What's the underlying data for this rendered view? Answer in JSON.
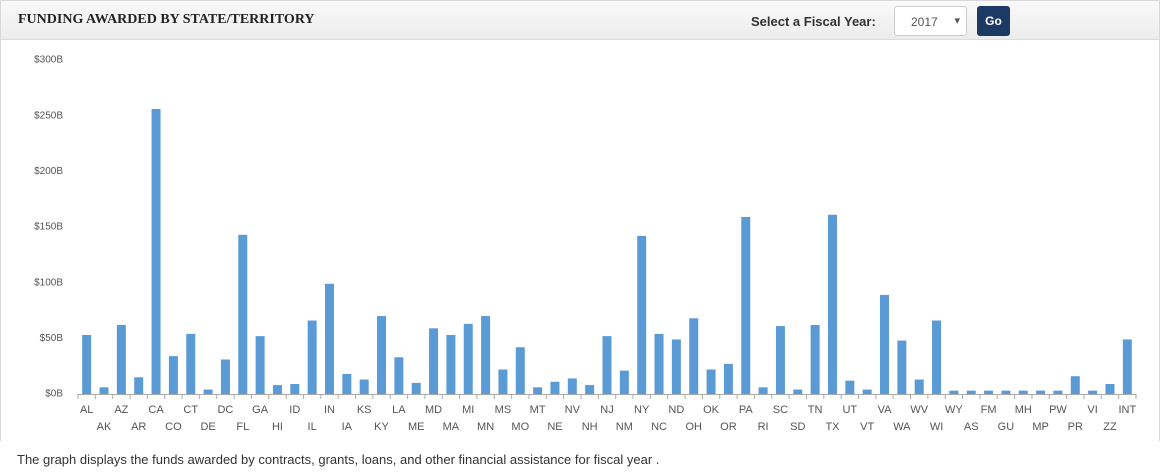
{
  "header": {
    "title": "FUNDING AWARDED BY STATE/TERRITORY",
    "select_label": "Select a Fiscal Year:",
    "selected_year": "2017",
    "button": "Go"
  },
  "chart_data": {
    "type": "bar",
    "color": "#5b9bd5",
    "categories": [
      "AL",
      "AK",
      "AZ",
      "AR",
      "CA",
      "CO",
      "CT",
      "DE",
      "DC",
      "FL",
      "GA",
      "HI",
      "ID",
      "IL",
      "IN",
      "IA",
      "KS",
      "KY",
      "LA",
      "ME",
      "MD",
      "MA",
      "MI",
      "MN",
      "MS",
      "MO",
      "MT",
      "NE",
      "NV",
      "NH",
      "NJ",
      "NM",
      "NY",
      "NC",
      "ND",
      "OH",
      "OK",
      "OR",
      "PA",
      "RI",
      "SC",
      "SD",
      "TN",
      "TX",
      "UT",
      "VT",
      "VA",
      "WA",
      "WV",
      "WI",
      "WY",
      "AS",
      "FM",
      "GU",
      "MH",
      "MP",
      "PW",
      "PR",
      "VI",
      "ZZ",
      "INT"
    ],
    "values": [
      53,
      6,
      62,
      15,
      256,
      34,
      54,
      4,
      31,
      143,
      52,
      8,
      9,
      66,
      99,
      18,
      13,
      70,
      33,
      10,
      59,
      53,
      63,
      70,
      22,
      42,
      6,
      11,
      14,
      8,
      52,
      21,
      142,
      54,
      49,
      68,
      22,
      27,
      159,
      6,
      61,
      4,
      62,
      161,
      12,
      4,
      89,
      48,
      13,
      66,
      3,
      3,
      3,
      3,
      3,
      3,
      3,
      16,
      3,
      9,
      49
    ],
    "ylim": [
      0,
      300
    ],
    "yticks": [
      {
        "value": 0,
        "label": "$0B"
      },
      {
        "value": 50,
        "label": "$50B"
      },
      {
        "value": 100,
        "label": "$100B"
      },
      {
        "value": 150,
        "label": "$150B"
      },
      {
        "value": 200,
        "label": "$200B"
      },
      {
        "value": 250,
        "label": "$250B"
      },
      {
        "value": 300,
        "label": "$300B"
      }
    ],
    "grid": false
  },
  "footer": "The graph displays the funds awarded by contracts, grants, loans, and other financial assistance for fiscal year ."
}
